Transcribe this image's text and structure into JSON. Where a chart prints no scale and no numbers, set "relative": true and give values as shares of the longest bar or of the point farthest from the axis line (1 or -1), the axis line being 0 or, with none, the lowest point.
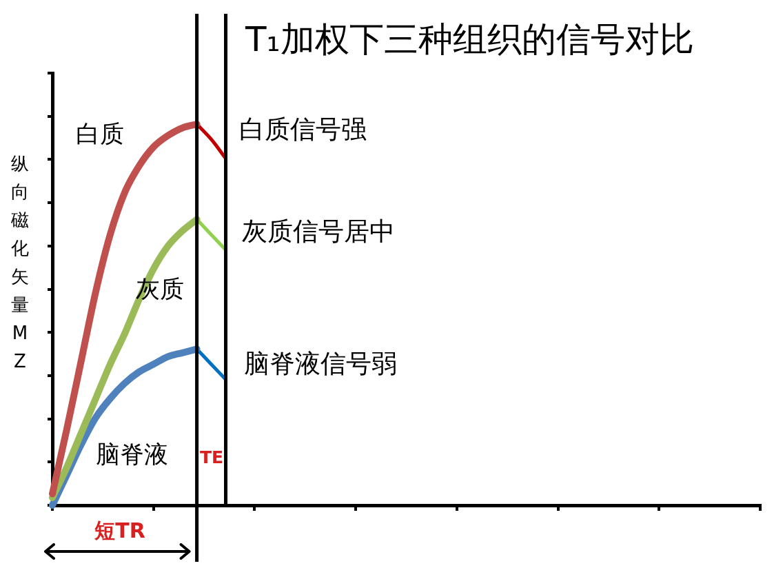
{
  "chart_data": {
    "type": "line",
    "title": "T₁加权下三种组织的信号对比",
    "ylabel": "纵向磁化矢量MZ",
    "relative": true,
    "marker": "none",
    "categories": [
      null,
      null,
      null,
      null,
      null,
      null,
      null,
      null,
      null,
      null,
      null,
      null,
      null,
      null,
      null,
      null,
      null,
      null,
      null,
      null,
      null,
      null,
      null,
      null,
      null,
      null,
      null,
      null,
      null,
      null,
      null,
      null,
      null,
      null,
      null,
      null,
      null,
      null,
      null,
      null,
      null,
      null,
      null,
      null,
      null,
      null,
      null,
      null,
      null,
      null
    ],
    "series": [
      {
        "name": "白质",
        "color": "#c0504d",
        "values": [
          0.03,
          0.2,
          0.38,
          0.56,
          0.71,
          0.82,
          0.89,
          0.94,
          0.97,
          0.99,
          1,
          null,
          null,
          null,
          null,
          null,
          null,
          null,
          null,
          null,
          null,
          null,
          null,
          null,
          null,
          null,
          null,
          null,
          null,
          null,
          null,
          null,
          null,
          null,
          null,
          null,
          null,
          null,
          null,
          null,
          null,
          null,
          null,
          null,
          null,
          null,
          null,
          null,
          null,
          null
        ]
      },
      {
        "name": "灰质",
        "color": "#9bbb59",
        "values": [
          0.02,
          0.1,
          0.19,
          0.28,
          0.37,
          0.45,
          0.54,
          0.62,
          0.68,
          0.72,
          0.75,
          null,
          null,
          null,
          null,
          null,
          null,
          null,
          null,
          null,
          null,
          null,
          null,
          null,
          null,
          null,
          null,
          null,
          null,
          null,
          null,
          null,
          null,
          null,
          null,
          null,
          null,
          null,
          null,
          null,
          null,
          null,
          null,
          null,
          null,
          null,
          null,
          null,
          null,
          null
        ]
      },
      {
        "name": "脑脊液",
        "color": "#4f81bd",
        "values": [
          0,
          0.08,
          0.16,
          0.23,
          0.28,
          0.32,
          0.35,
          0.37,
          0.39,
          0.4,
          0.41,
          null,
          null,
          null,
          null,
          null,
          null,
          null,
          null,
          null,
          null,
          null,
          null,
          null,
          null,
          null,
          null,
          null,
          null,
          null,
          null,
          null,
          null,
          null,
          null,
          null,
          null,
          null,
          null,
          null,
          null,
          null,
          null,
          null,
          null,
          null,
          null,
          null,
          null,
          null
        ]
      },
      {
        "color": "#c00000",
        "values": [
          null,
          null,
          null,
          null,
          null,
          null,
          null,
          null,
          null,
          null,
          1,
          0.96,
          0.91,
          null,
          null,
          null,
          null,
          null,
          null,
          null,
          null,
          null,
          null,
          null,
          null,
          null,
          null,
          null,
          null,
          null,
          null,
          null,
          null,
          null,
          null,
          null,
          null,
          null,
          null,
          null,
          null,
          null,
          null,
          null,
          null,
          null,
          null,
          null,
          null,
          null
        ]
      },
      {
        "color": "#92d050",
        "values": [
          null,
          null,
          null,
          null,
          null,
          null,
          null,
          null,
          null,
          null,
          0.75,
          0.71,
          0.67,
          null,
          null,
          null,
          null,
          null,
          null,
          null,
          null,
          null,
          null,
          null,
          null,
          null,
          null,
          null,
          null,
          null,
          null,
          null,
          null,
          null,
          null,
          null,
          null,
          null,
          null,
          null,
          null,
          null,
          null,
          null,
          null,
          null,
          null,
          null,
          null,
          null
        ]
      },
      {
        "color": "#0070c0",
        "values": [
          null,
          null,
          null,
          null,
          null,
          null,
          null,
          null,
          null,
          null,
          0.41,
          0.37,
          0.33,
          null,
          null,
          null,
          null,
          null,
          null,
          null,
          null,
          null,
          null,
          null,
          null,
          null,
          null,
          null,
          null,
          null,
          null,
          null,
          null,
          null,
          null,
          null,
          null,
          null,
          null,
          null,
          null,
          null,
          null,
          null,
          null,
          null,
          null,
          null,
          null,
          null
        ]
      }
    ],
    "annotations": [
      "白质信号强",
      "灰质信号居中",
      "脑脊液信号弱",
      "短TR",
      "TE"
    ]
  }
}
